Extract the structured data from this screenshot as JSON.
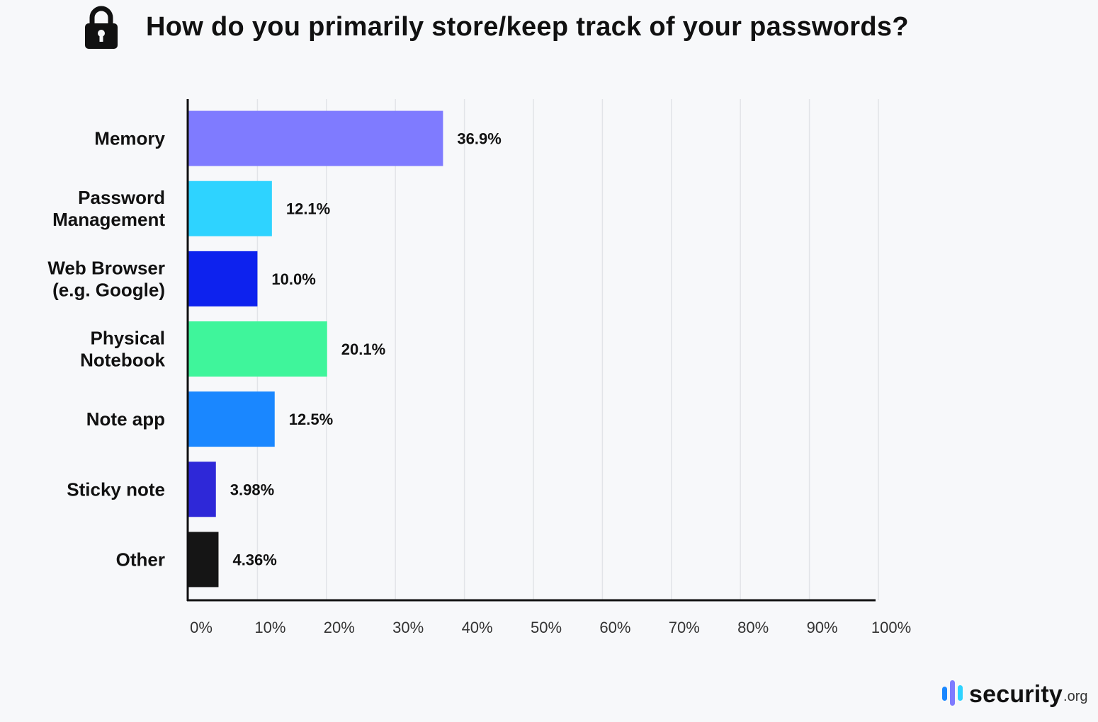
{
  "header": {
    "icon": "lock-icon",
    "title": "How do you primarily store/keep track of your passwords?"
  },
  "chart_data": {
    "type": "bar",
    "orientation": "horizontal",
    "title": "How do you primarily store/keep track of your passwords?",
    "xlabel": "",
    "ylabel": "",
    "xlim": [
      0,
      100
    ],
    "grid": true,
    "categories": [
      [
        "Memory"
      ],
      [
        "Password",
        "Management"
      ],
      [
        "Web Browser",
        "(e.g. Google)"
      ],
      [
        "Physical",
        "Notebook"
      ],
      [
        "Note app"
      ],
      [
        "Sticky note"
      ],
      [
        "Other"
      ]
    ],
    "values": [
      36.9,
      12.1,
      10.0,
      20.1,
      12.5,
      3.98,
      4.36
    ],
    "value_labels": [
      "36.9%",
      "12.1%",
      "10.0%",
      "20.1%",
      "12.5%",
      "3.98%",
      "4.36%"
    ],
    "colors": [
      "#7f7bff",
      "#2ed3ff",
      "#0d22ee",
      "#3ff59b",
      "#1a87ff",
      "#2e28d8",
      "#151515"
    ],
    "ticks": [
      "0%",
      "10%",
      "20%",
      "30%",
      "40%",
      "50%",
      "60%",
      "70%",
      "80%",
      "90%",
      "100%"
    ]
  },
  "brand": {
    "icon": "security-logo-icon",
    "name": "security",
    "suffix": ".org",
    "colors": [
      "#1a87ff",
      "#7f7bff",
      "#2ed3ff"
    ]
  }
}
